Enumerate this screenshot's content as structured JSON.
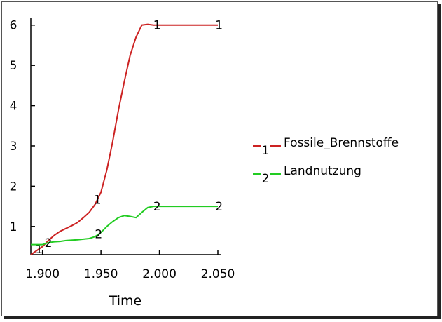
{
  "chart_data": {
    "type": "line",
    "title": "",
    "xlabel": "Time",
    "ylabel": "",
    "xlim": [
      1890,
      2050
    ],
    "ylim": [
      0.3,
      6.1
    ],
    "x_ticks": [
      {
        "value": 1900,
        "label": "1.900"
      },
      {
        "value": 1950,
        "label": "1.950"
      },
      {
        "value": 2000,
        "label": "2.000"
      },
      {
        "value": 2050,
        "label": "2.050"
      }
    ],
    "y_ticks": [
      {
        "value": 1,
        "label": "1"
      },
      {
        "value": 2,
        "label": "2"
      },
      {
        "value": 3,
        "label": "3"
      },
      {
        "value": 4,
        "label": "4"
      },
      {
        "value": 5,
        "label": "5"
      },
      {
        "value": 6,
        "label": "6"
      }
    ],
    "legend_position": "right",
    "series": [
      {
        "name": "Fossile_Brennstoffe",
        "marker": "1",
        "color": "#cc2222",
        "x": [
          1890,
          1895,
          1900,
          1905,
          1910,
          1915,
          1920,
          1925,
          1930,
          1935,
          1940,
          1945,
          1950,
          1955,
          1960,
          1965,
          1970,
          1975,
          1980,
          1985,
          1990,
          1995,
          2000,
          2010,
          2020,
          2030,
          2040,
          2050
        ],
        "y": [
          0.3,
          0.4,
          0.5,
          0.65,
          0.78,
          0.88,
          0.95,
          1.02,
          1.1,
          1.22,
          1.35,
          1.55,
          1.85,
          2.4,
          3.1,
          3.9,
          4.6,
          5.25,
          5.7,
          6.0,
          6.02,
          6.0,
          6.0,
          6.0,
          6.0,
          6.0,
          6.0,
          6.0
        ],
        "marker_x": [
          1897,
          1947,
          1998,
          2051
        ]
      },
      {
        "name": "Landnutzung",
        "marker": "2",
        "color": "#22cc22",
        "x": [
          1890,
          1900,
          1905,
          1910,
          1915,
          1920,
          1930,
          1940,
          1945,
          1950,
          1955,
          1960,
          1965,
          1970,
          1975,
          1980,
          1985,
          1990,
          1995,
          2000,
          2010,
          2020,
          2030,
          2040,
          2050
        ],
        "y": [
          0.55,
          0.55,
          0.6,
          0.62,
          0.63,
          0.65,
          0.67,
          0.7,
          0.75,
          0.85,
          1.0,
          1.12,
          1.22,
          1.27,
          1.25,
          1.22,
          1.35,
          1.47,
          1.5,
          1.5,
          1.5,
          1.5,
          1.5,
          1.5,
          1.5
        ],
        "marker_x": [
          1905,
          1948,
          1998,
          2051
        ]
      }
    ]
  }
}
